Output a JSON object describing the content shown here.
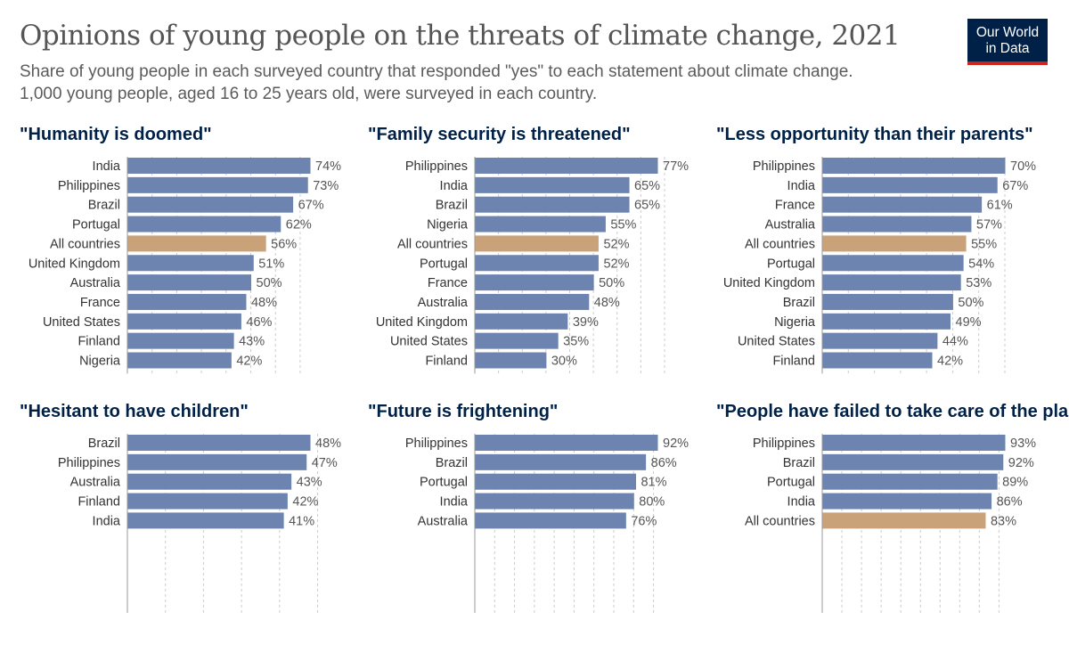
{
  "header": {
    "title": "Opinions of young people on the threats of climate change, 2021",
    "subtitle_line1": "Share of young people in each surveyed country that responded \"yes\" to each statement about climate change.",
    "subtitle_line2": "1,000 young people, aged 16 to 25 years old, were surveyed in each country.",
    "logo": "Our World in Data"
  },
  "colors": {
    "bar": "#6d84b0",
    "highlight": "#c9a27a",
    "title": "#002147",
    "logo_bg": "#002147",
    "logo_accent": "#ce261e"
  },
  "chart_data": [
    {
      "type": "bar",
      "orientation": "horizontal",
      "title": "\"Humanity is doomed\"",
      "unit": "%",
      "grid": "vertical dashed",
      "categories": [
        "India",
        "Philippines",
        "Brazil",
        "Portugal",
        "All countries",
        "United Kingdom",
        "Australia",
        "France",
        "United States",
        "Finland",
        "Nigeria"
      ],
      "values": [
        74,
        73,
        67,
        62,
        56,
        51,
        50,
        48,
        46,
        43,
        42
      ],
      "highlight": "All countries"
    },
    {
      "type": "bar",
      "orientation": "horizontal",
      "title": "\"Family security is threatened\"",
      "unit": "%",
      "grid": "vertical dashed",
      "categories": [
        "Philippines",
        "India",
        "Brazil",
        "Nigeria",
        "All countries",
        "Portugal",
        "France",
        "Australia",
        "United Kingdom",
        "United States",
        "Finland"
      ],
      "values": [
        77,
        65,
        65,
        55,
        52,
        52,
        50,
        48,
        39,
        35,
        30
      ],
      "highlight": "All countries"
    },
    {
      "type": "bar",
      "orientation": "horizontal",
      "title": "\"Less opportunity than their parents\"",
      "unit": "%",
      "grid": "vertical dashed",
      "categories": [
        "Philippines",
        "India",
        "France",
        "Australia",
        "All countries",
        "Portugal",
        "United Kingdom",
        "Brazil",
        "Nigeria",
        "United States",
        "Finland"
      ],
      "values": [
        70,
        67,
        61,
        57,
        55,
        54,
        53,
        50,
        49,
        44,
        42
      ],
      "highlight": "All countries"
    },
    {
      "type": "bar",
      "orientation": "horizontal",
      "title": "\"Hesitant to have children\"",
      "unit": "%",
      "grid": "vertical dashed",
      "categories": [
        "Brazil",
        "Philippines",
        "Australia",
        "Finland",
        "India"
      ],
      "values": [
        48,
        47,
        43,
        42,
        41
      ],
      "highlight": "All countries"
    },
    {
      "type": "bar",
      "orientation": "horizontal",
      "title": "\"Future is frightening\"",
      "unit": "%",
      "grid": "vertical dashed",
      "categories": [
        "Philippines",
        "Brazil",
        "Portugal",
        "India",
        "Australia"
      ],
      "values": [
        92,
        86,
        81,
        80,
        76
      ],
      "highlight": "All countries"
    },
    {
      "type": "bar",
      "orientation": "horizontal",
      "title": "\"People have failed to take care of the planet\"",
      "unit": "%",
      "grid": "vertical dashed",
      "categories": [
        "Philippines",
        "Brazil",
        "Portugal",
        "India",
        "All countries"
      ],
      "values": [
        93,
        92,
        89,
        86,
        83
      ],
      "highlight": "All countries"
    }
  ]
}
